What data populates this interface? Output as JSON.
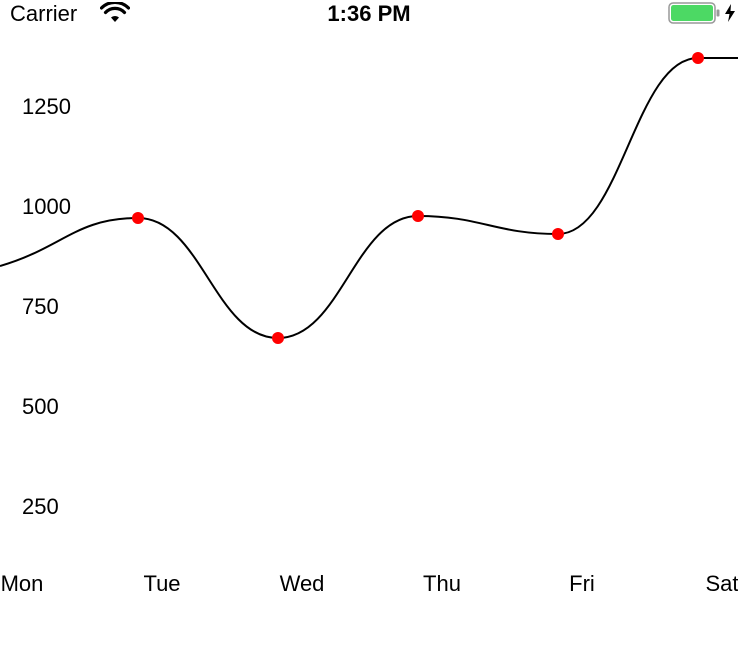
{
  "status_bar": {
    "carrier": "Carrier",
    "time": "1:36 PM",
    "battery_color": "#4cd964",
    "icons": [
      "wifi-icon",
      "battery-icon",
      "charging-bolt-icon"
    ]
  },
  "chart_data": {
    "type": "line",
    "categories": [
      "Mon",
      "Tue",
      "Wed",
      "Thu",
      "Fri",
      "Sat"
    ],
    "series": [
      {
        "values": [
          870,
          970,
          670,
          975,
          930,
          1370
        ]
      }
    ],
    "y_ticks": [
      "250",
      "500",
      "750",
      "1000",
      "1250"
    ],
    "ylim": [
      0,
      1450
    ],
    "line_color": "#000000",
    "point_color": "#ff0000",
    "grid": false,
    "smooth": true
  }
}
